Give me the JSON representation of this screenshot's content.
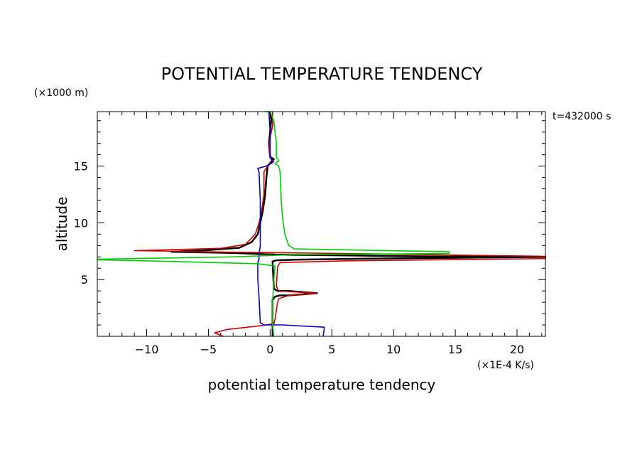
{
  "chart_data": {
    "type": "line",
    "title": "POTENTIAL TEMPERATURE TENDENCY",
    "xlabel": "potential temperature tendency",
    "ylabel": "altitude",
    "x_unit": "(×1E-4 K/s)",
    "y_unit": "(×1000 m)",
    "time_label": "t=432000 s",
    "xlim": [
      -14,
      22.3
    ],
    "ylim": [
      0,
      19.8
    ],
    "x_ticks": [
      -10,
      -5,
      0,
      5,
      10,
      15,
      20
    ],
    "y_ticks": [
      5,
      10,
      15
    ],
    "grid": false,
    "series": [
      {
        "color": "#000000",
        "points": [
          [
            0.2,
            0
          ],
          [
            0.2,
            3.2
          ],
          [
            0.4,
            3.5
          ],
          [
            0.8,
            3.6
          ],
          [
            1.5,
            3.6
          ],
          [
            3.8,
            3.8
          ],
          [
            1.5,
            4.0
          ],
          [
            0.6,
            4.0
          ],
          [
            0.3,
            4.2
          ],
          [
            0.2,
            6.6
          ],
          [
            0.5,
            6.7
          ],
          [
            2,
            6.75
          ],
          [
            8,
            6.85
          ],
          [
            22.3,
            7.0
          ],
          [
            12,
            7.05
          ],
          [
            0.5,
            7.2
          ],
          [
            -3,
            7.35
          ],
          [
            -8,
            7.45
          ],
          [
            -5,
            7.6
          ],
          [
            -2.5,
            7.8
          ],
          [
            -1.5,
            8.3
          ],
          [
            -1,
            9.0
          ],
          [
            -0.8,
            10.0
          ],
          [
            -0.6,
            11.0
          ],
          [
            -0.4,
            12.5
          ],
          [
            -0.3,
            14.0
          ],
          [
            -0.2,
            15.0
          ],
          [
            0.1,
            15.4
          ],
          [
            0.3,
            15.6
          ],
          [
            0,
            15.8
          ],
          [
            -0.1,
            17
          ],
          [
            0,
            18
          ],
          [
            0.1,
            19.2
          ],
          [
            0,
            19.8
          ]
        ]
      },
      {
        "color": "#cc0000",
        "points": [
          [
            -3.8,
            0
          ],
          [
            -4.5,
            0.3
          ],
          [
            -3.5,
            0.6
          ],
          [
            -1,
            0.9
          ],
          [
            0.3,
            1.1
          ],
          [
            0.4,
            1.5
          ],
          [
            0.6,
            3.0
          ],
          [
            0.7,
            3.3
          ],
          [
            1.5,
            3.6
          ],
          [
            3.8,
            3.8
          ],
          [
            0.7,
            4.0
          ],
          [
            0.5,
            4.4
          ],
          [
            0.6,
            6.1
          ],
          [
            0.8,
            6.5
          ],
          [
            6,
            6.65
          ],
          [
            22.3,
            6.85
          ],
          [
            22.3,
            7.05
          ],
          [
            6,
            7.3
          ],
          [
            -2,
            7.4
          ],
          [
            -11,
            7.55
          ],
          [
            -4,
            7.75
          ],
          [
            -2,
            8.1
          ],
          [
            -1.2,
            9.0
          ],
          [
            -0.9,
            10.0
          ],
          [
            -0.7,
            11.0
          ],
          [
            -0.5,
            12.5
          ],
          [
            -0.5,
            14.5
          ],
          [
            -0.2,
            15.0
          ],
          [
            0,
            15.2
          ],
          [
            0.3,
            15.4
          ],
          [
            0,
            15.7
          ],
          [
            -0.1,
            17
          ],
          [
            0.2,
            18.5
          ],
          [
            0.2,
            19.8
          ]
        ]
      },
      {
        "color": "#0000cc",
        "points": [
          [
            4.3,
            0
          ],
          [
            4.4,
            0.8
          ],
          [
            1,
            1.0
          ],
          [
            -0.5,
            1.0
          ],
          [
            -0.8,
            1.2
          ],
          [
            -0.9,
            3.5
          ],
          [
            -1,
            5
          ],
          [
            -1,
            6.5
          ],
          [
            -0.9,
            6.8
          ],
          [
            -0.9,
            7.2
          ],
          [
            -0.8,
            8
          ],
          [
            -0.8,
            10
          ],
          [
            -0.8,
            12
          ],
          [
            -0.9,
            14.5
          ],
          [
            -1,
            14.8
          ],
          [
            -0.3,
            15.0
          ],
          [
            0,
            15.2
          ],
          [
            0.2,
            15.3
          ],
          [
            0,
            16
          ],
          [
            0,
            18
          ],
          [
            -0.1,
            19.8
          ]
        ]
      },
      {
        "color": "#00cc00",
        "points": [
          [
            0.3,
            0
          ],
          [
            0.2,
            1
          ],
          [
            0.2,
            3
          ],
          [
            0.3,
            5
          ],
          [
            0.4,
            6.2
          ],
          [
            -1,
            6.4
          ],
          [
            -8,
            6.6
          ],
          [
            -14,
            6.75
          ],
          [
            -14,
            6.8
          ],
          [
            -3,
            7.0
          ],
          [
            2,
            7.2
          ],
          [
            14.5,
            7.3
          ],
          [
            14.5,
            7.45
          ],
          [
            7,
            7.6
          ],
          [
            2,
            7.7
          ],
          [
            1.5,
            8.0
          ],
          [
            1.2,
            9.0
          ],
          [
            1.0,
            10.5
          ],
          [
            0.9,
            12
          ],
          [
            0.8,
            14.5
          ],
          [
            0.7,
            15.0
          ],
          [
            0.4,
            15.2
          ],
          [
            0.7,
            15.5
          ],
          [
            0.5,
            15.8
          ],
          [
            0.5,
            17
          ],
          [
            0.3,
            19
          ],
          [
            0,
            19.8
          ],
          [
            -0.5,
            19.8
          ]
        ]
      }
    ]
  }
}
